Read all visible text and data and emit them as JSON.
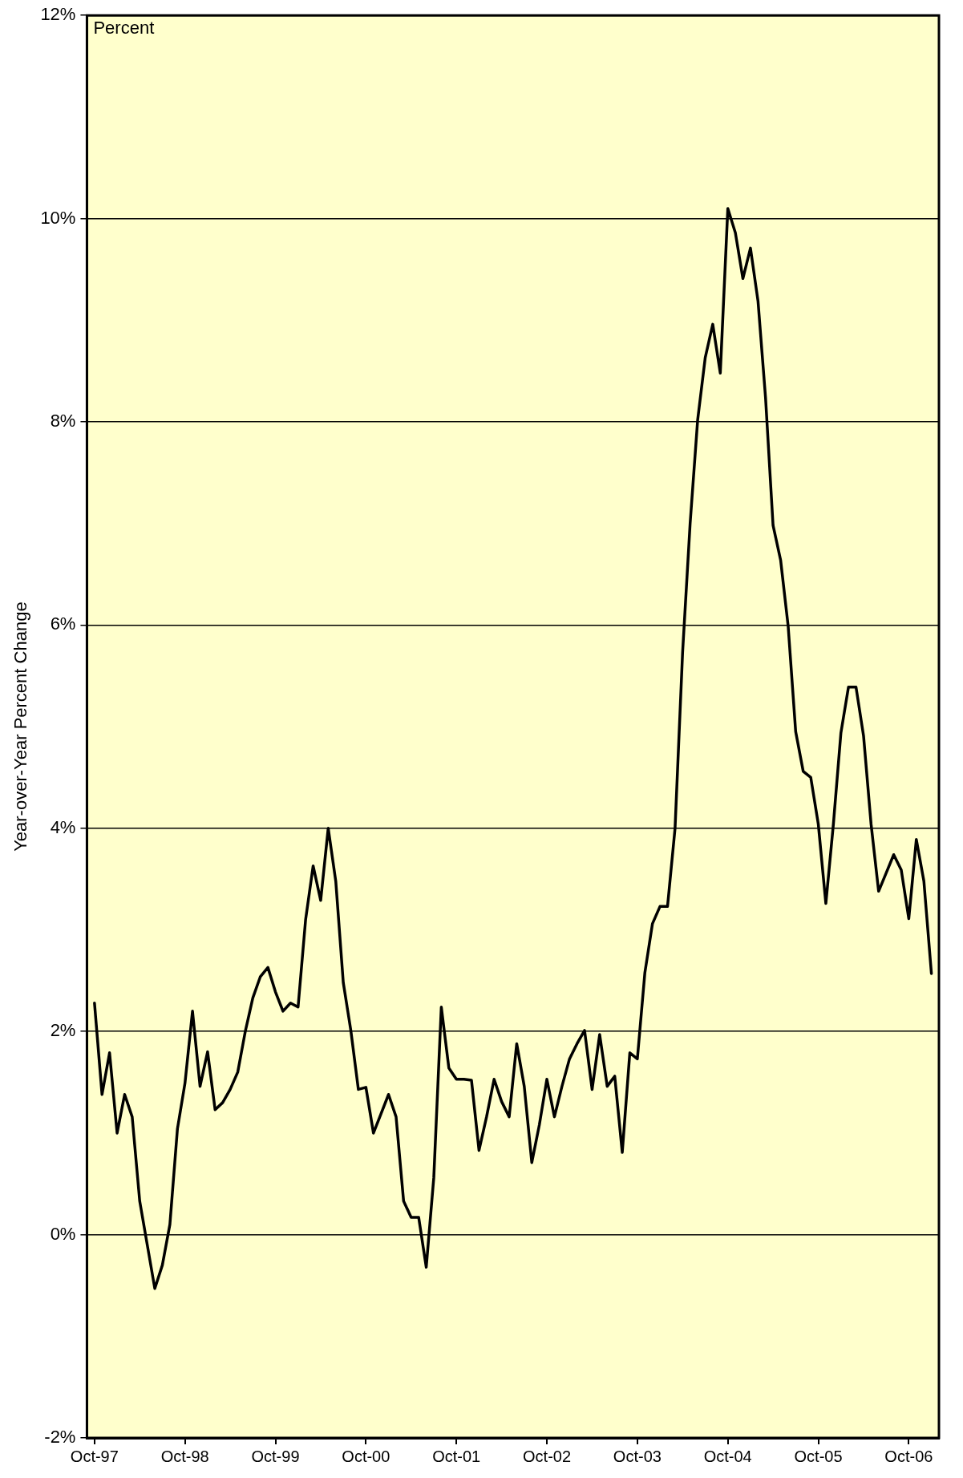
{
  "chart_data": {
    "type": "line",
    "ylabel": "Year-over-Year Percent Change",
    "annotations": [
      "Percent"
    ],
    "x": [
      "1997-10",
      "1997-11",
      "1997-12",
      "1998-01",
      "1998-02",
      "1998-03",
      "1998-04",
      "1998-05",
      "1998-06",
      "1998-07",
      "1998-08",
      "1998-09",
      "1998-10",
      "1998-11",
      "1998-12",
      "1999-01",
      "1999-02",
      "1999-03",
      "1999-04",
      "1999-05",
      "1999-06",
      "1999-07",
      "1999-08",
      "1999-09",
      "1999-10",
      "1999-11",
      "1999-12",
      "2000-01",
      "2000-02",
      "2000-03",
      "2000-04",
      "2000-05",
      "2000-06",
      "2000-07",
      "2000-08",
      "2000-09",
      "2000-10",
      "2000-11",
      "2000-12",
      "2001-01",
      "2001-02",
      "2001-03",
      "2001-04",
      "2001-05",
      "2001-06",
      "2001-07",
      "2001-08",
      "2001-09",
      "2001-10",
      "2001-11",
      "2001-12",
      "2002-01",
      "2002-02",
      "2002-03",
      "2002-04",
      "2002-05",
      "2002-06",
      "2002-07",
      "2002-08",
      "2002-09",
      "2002-10",
      "2002-11",
      "2002-12",
      "2003-01",
      "2003-02",
      "2003-03",
      "2003-04",
      "2003-05",
      "2003-06",
      "2003-07",
      "2003-08",
      "2003-09",
      "2003-10",
      "2003-11",
      "2003-12",
      "2004-01",
      "2004-02",
      "2004-03",
      "2004-04",
      "2004-05",
      "2004-06",
      "2004-07",
      "2004-08",
      "2004-09",
      "2004-10",
      "2004-11",
      "2004-12",
      "2005-01",
      "2005-02",
      "2005-03",
      "2005-04",
      "2005-05",
      "2005-06",
      "2005-07",
      "2005-08",
      "2005-09",
      "2005-10",
      "2005-11",
      "2005-12",
      "2006-01",
      "2006-02",
      "2006-03",
      "2006-04",
      "2006-05",
      "2006-06",
      "2006-07",
      "2006-08",
      "2006-09",
      "2006-10",
      "2006-11",
      "2006-12",
      "2007-01"
    ],
    "series": [
      {
        "color": "#000000",
        "values": [
          2.28,
          1.38,
          1.79,
          1.0,
          1.38,
          1.16,
          0.33,
          -0.1,
          -0.53,
          -0.3,
          0.1,
          1.04,
          1.49,
          2.2,
          1.46,
          1.8,
          1.23,
          1.3,
          1.43,
          1.6,
          2.0,
          2.33,
          2.54,
          2.63,
          2.39,
          2.2,
          2.28,
          2.24,
          3.1,
          3.63,
          3.29,
          4.0,
          3.48,
          2.48,
          2.01,
          1.43,
          1.45,
          1.0,
          1.19,
          1.38,
          1.16,
          0.33,
          0.17,
          0.17,
          -0.32,
          0.56,
          2.24,
          1.64,
          1.53,
          1.53,
          1.52,
          0.83,
          1.16,
          1.53,
          1.31,
          1.16,
          1.88,
          1.46,
          0.71,
          1.08,
          1.53,
          1.16,
          1.46,
          1.73,
          1.88,
          2.01,
          1.43,
          1.97,
          1.46,
          1.56,
          0.81,
          1.79,
          1.73,
          2.58,
          3.06,
          3.23,
          3.23,
          4.0,
          5.73,
          7.0,
          8.02,
          8.63,
          8.96,
          8.48,
          10.1,
          9.86,
          9.41,
          9.71,
          9.19,
          8.24,
          6.98,
          6.64,
          5.99,
          4.95,
          4.56,
          4.5,
          4.04,
          3.26,
          4.04,
          4.94,
          5.39,
          5.39,
          4.91,
          4.04,
          3.38,
          3.56,
          3.74,
          3.59,
          3.11,
          3.89,
          3.48,
          2.57
        ]
      }
    ],
    "xlim": [
      "1997-09",
      "2007-02"
    ],
    "xticks": [
      {
        "value": "1997-10",
        "label": "Oct-97"
      },
      {
        "value": "1998-10",
        "label": "Oct-98"
      },
      {
        "value": "1999-10",
        "label": "Oct-99"
      },
      {
        "value": "2000-10",
        "label": "Oct-00"
      },
      {
        "value": "2001-10",
        "label": "Oct-01"
      },
      {
        "value": "2002-10",
        "label": "Oct-02"
      },
      {
        "value": "2003-10",
        "label": "Oct-03"
      },
      {
        "value": "2004-10",
        "label": "Oct-04"
      },
      {
        "value": "2005-10",
        "label": "Oct-05"
      },
      {
        "value": "2006-10",
        "label": "Oct-06"
      }
    ],
    "ylim": [
      -2,
      12
    ],
    "yticks": [
      {
        "value": -2,
        "label": "-2%"
      },
      {
        "value": 0,
        "label": "0%"
      },
      {
        "value": 2,
        "label": "2%"
      },
      {
        "value": 4,
        "label": "4%"
      },
      {
        "value": 6,
        "label": "6%"
      },
      {
        "value": 8,
        "label": "8%"
      },
      {
        "value": 10,
        "label": "10%"
      },
      {
        "value": 12,
        "label": "12%"
      }
    ],
    "grid": "y",
    "legend": false,
    "marker": "none",
    "line_style": "solid"
  }
}
